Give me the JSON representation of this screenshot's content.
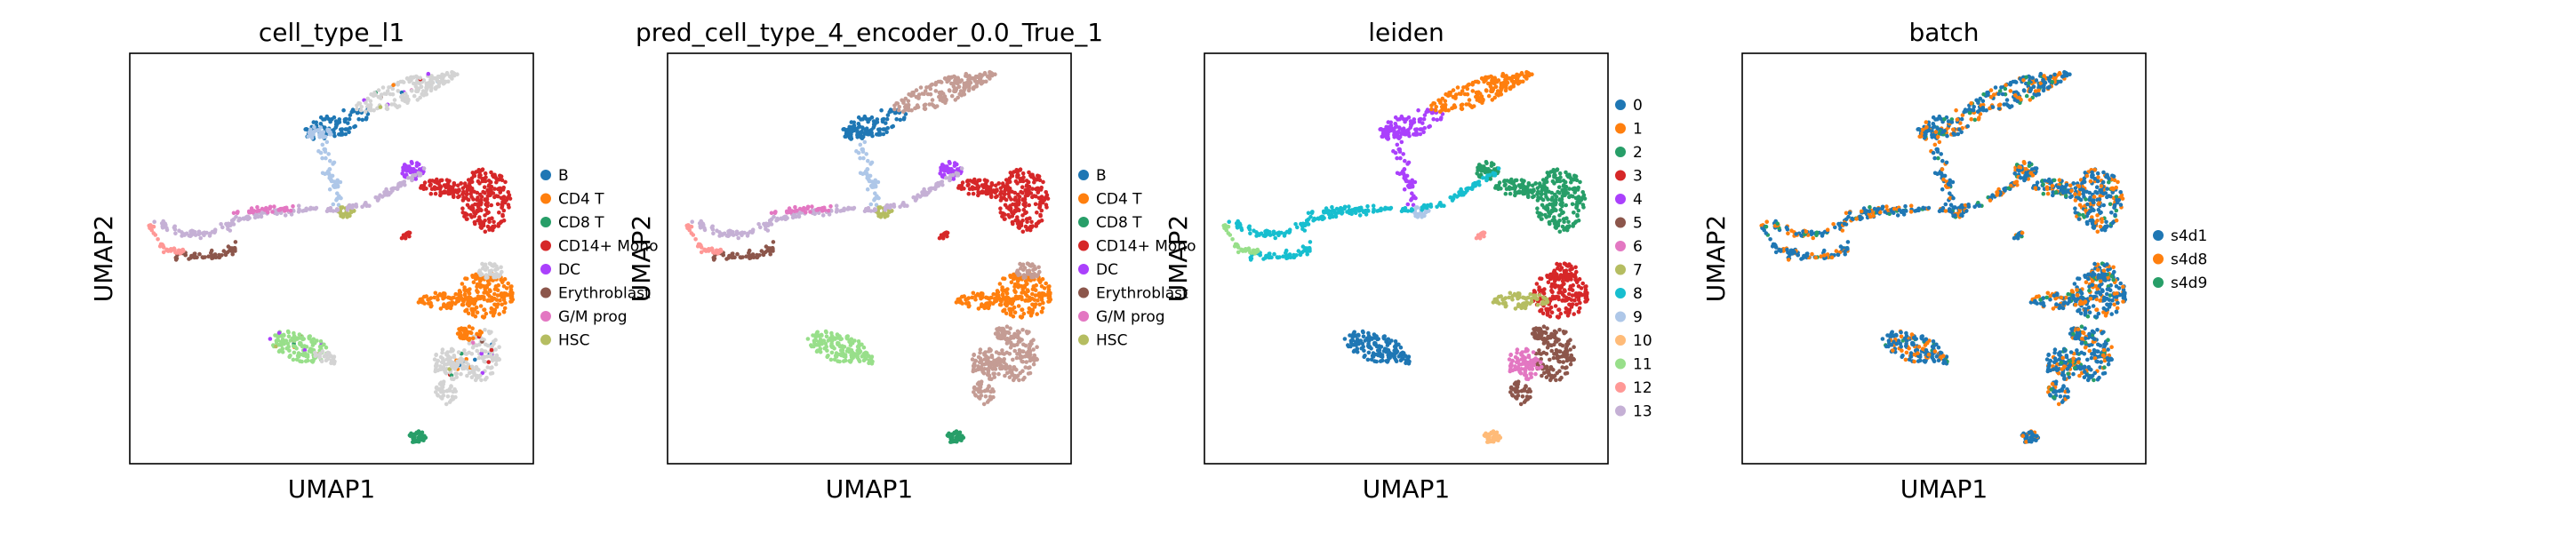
{
  "palettes": {
    "scanpy": [
      "#1f77b4",
      "#ff7f0e",
      "#279e68",
      "#d62728",
      "#aa40fc",
      "#8c564b",
      "#e377c2",
      "#b5bd61",
      "#17becf",
      "#aec7e8",
      "#ffbb78",
      "#98df8a",
      "#ff9896",
      "#c5b0d5"
    ],
    "na_color": "#d3d3d3"
  },
  "chart_data": [
    {
      "type": "scatter",
      "title": "cell_type_l1",
      "xlabel": "UMAP1",
      "ylabel": "UMAP2",
      "grid": false,
      "ticks": false,
      "legend_position": "right",
      "legend": [
        "B",
        "CD4 T",
        "CD8 T",
        "CD14+ Mono",
        "DC",
        "Erythroblast",
        "G/M prog",
        "HSC"
      ],
      "colors": [
        "#1f77b4",
        "#ff7f0e",
        "#279e68",
        "#d62728",
        "#aa40fc",
        "#8c564b",
        "#e377c2",
        "#b5bd61"
      ],
      "coloring": "cell_type"
    },
    {
      "type": "scatter",
      "title": "pred_cell_type_4_encoder_0.0_True_1",
      "xlabel": "UMAP1",
      "ylabel": "UMAP2",
      "grid": false,
      "ticks": false,
      "legend_position": "right",
      "legend": [
        "B",
        "CD4 T",
        "CD8 T",
        "CD14+ Mono",
        "DC",
        "Erythroblast",
        "G/M prog",
        "HSC"
      ],
      "colors": [
        "#1f77b4",
        "#ff7f0e",
        "#279e68",
        "#d62728",
        "#aa40fc",
        "#8c564b",
        "#e377c2",
        "#b5bd61"
      ],
      "coloring": "pred"
    },
    {
      "type": "scatter",
      "title": "leiden",
      "xlabel": "UMAP1",
      "ylabel": "UMAP2",
      "grid": false,
      "ticks": false,
      "legend_position": "right",
      "legend": [
        "0",
        "1",
        "2",
        "3",
        "4",
        "5",
        "6",
        "7",
        "8",
        "9",
        "10",
        "11",
        "12",
        "13"
      ],
      "colors": [
        "#1f77b4",
        "#ff7f0e",
        "#279e68",
        "#d62728",
        "#aa40fc",
        "#8c564b",
        "#e377c2",
        "#b5bd61",
        "#17becf",
        "#aec7e8",
        "#ffbb78",
        "#98df8a",
        "#ff9896",
        "#c5b0d5"
      ],
      "coloring": "leiden"
    },
    {
      "type": "scatter",
      "title": "batch",
      "xlabel": "UMAP1",
      "ylabel": "UMAP2",
      "grid": false,
      "ticks": false,
      "legend_position": "right",
      "legend": [
        "s4d1",
        "s4d8",
        "s4d9"
      ],
      "colors": [
        "#1f77b4",
        "#ff7f0e",
        "#279e68"
      ],
      "coloring": "batch"
    }
  ]
}
